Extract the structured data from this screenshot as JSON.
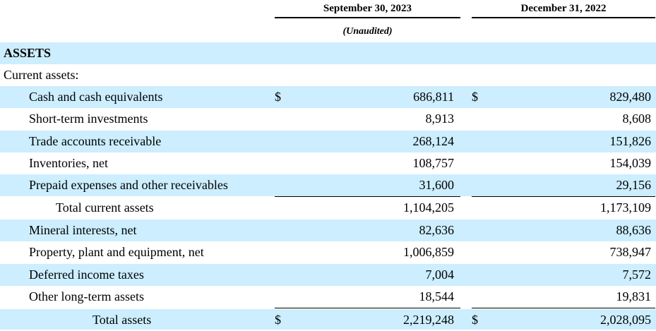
{
  "header": {
    "col1": "September 30, 2023",
    "col2": "December 31, 2022",
    "col1_sub": "(Unaudited)"
  },
  "section": "ASSETS",
  "subsection": "Current assets:",
  "currency_symbol": "$",
  "rows": [
    {
      "label": "Cash and cash equivalents",
      "v1": "686,811",
      "v2": "829,480"
    },
    {
      "label": "Short-term investments",
      "v1": "8,913",
      "v2": "8,608"
    },
    {
      "label": "Trade accounts receivable",
      "v1": "268,124",
      "v2": "151,826"
    },
    {
      "label": "Inventories, net",
      "v1": "108,757",
      "v2": "154,039"
    },
    {
      "label": "Prepaid expenses and other receivables",
      "v1": "31,600",
      "v2": "29,156"
    },
    {
      "label": "Total current assets",
      "v1": "1,104,205",
      "v2": "1,173,109"
    },
    {
      "label": "Mineral interests, net",
      "v1": "82,636",
      "v2": "88,636"
    },
    {
      "label": "Property, plant and equipment, net",
      "v1": "1,006,859",
      "v2": "738,947"
    },
    {
      "label": "Deferred income taxes",
      "v1": "7,004",
      "v2": "7,572"
    },
    {
      "label": "Other long-term assets",
      "v1": "18,544",
      "v2": "19,831"
    },
    {
      "label": "Total assets",
      "v1": "2,219,248",
      "v2": "2,028,095"
    }
  ],
  "colors": {
    "shade": "#cceeff"
  }
}
